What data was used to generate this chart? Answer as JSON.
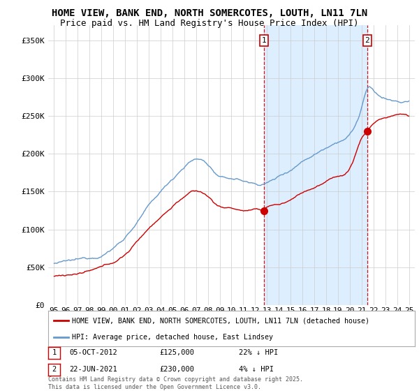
{
  "title": "HOME VIEW, BANK END, NORTH SOMERCOTES, LOUTH, LN11 7LN",
  "subtitle": "Price paid vs. HM Land Registry's House Price Index (HPI)",
  "ylabel_ticks": [
    "£0",
    "£50K",
    "£100K",
    "£150K",
    "£200K",
    "£250K",
    "£300K",
    "£350K"
  ],
  "ytick_values": [
    0,
    50000,
    100000,
    150000,
    200000,
    250000,
    300000,
    350000
  ],
  "ylim": [
    0,
    370000
  ],
  "xlim_start": 1994.5,
  "xlim_end": 2025.5,
  "hpi_color": "#6699cc",
  "price_color": "#cc0000",
  "shade_color": "#ddeeff",
  "marker1_x": 2012.75,
  "marker1_y": 125000,
  "marker2_x": 2021.47,
  "marker2_y": 230000,
  "annotation1": "1",
  "annotation2": "2",
  "legend_line1": "HOME VIEW, BANK END, NORTH SOMERCOTES, LOUTH, LN11 7LN (detached house)",
  "legend_line2": "HPI: Average price, detached house, East Lindsey",
  "table_row1": [
    "1",
    "05-OCT-2012",
    "£125,000",
    "22% ↓ HPI"
  ],
  "table_row2": [
    "2",
    "22-JUN-2021",
    "£230,000",
    "4% ↓ HPI"
  ],
  "footnote": "Contains HM Land Registry data © Crown copyright and database right 2025.\nThis data is licensed under the Open Government Licence v3.0.",
  "bg_color": "#ffffff",
  "grid_color": "#cccccc",
  "title_fontsize": 10,
  "subtitle_fontsize": 9,
  "tick_fontsize": 8
}
